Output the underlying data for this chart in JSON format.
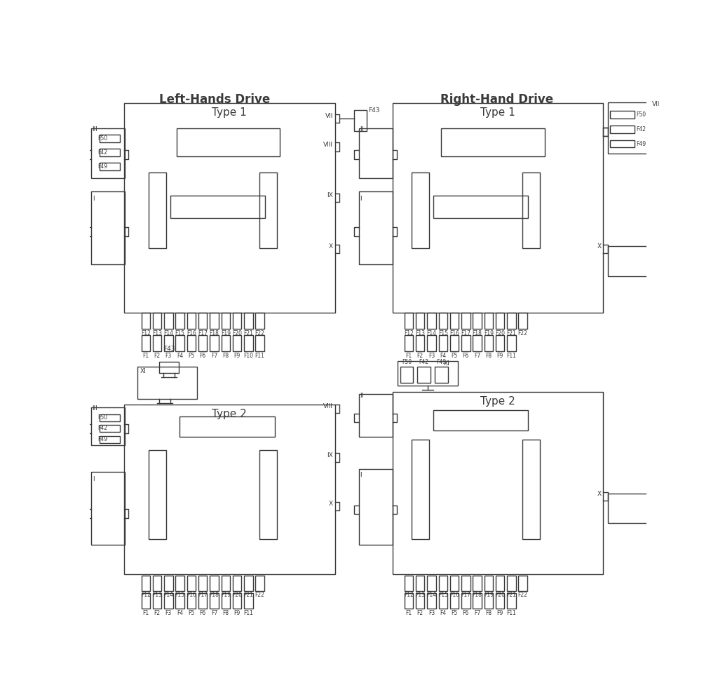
{
  "bg": "#ffffff",
  "lc": "#3a3a3a",
  "lw": 1.0,
  "title_lhd": "Left-Hands Drive",
  "title_rhd": "Right-Hand Drive",
  "fuse_row1_lhd_t1": [
    "F12",
    "F13",
    "F14",
    "F15",
    "F16",
    "F17",
    "F18",
    "F19",
    "F20",
    "F21",
    "F22"
  ],
  "fuse_row2_lhd_t1": [
    "F1",
    "F2",
    "F3",
    "F4",
    "F5",
    "F6",
    "F7",
    "F8",
    "F9",
    "F10",
    "F11"
  ],
  "fuse_row1_rhd_t1": [
    "F12",
    "F13",
    "F14",
    "F15",
    "F16",
    "F17",
    "F18",
    "F19",
    "F20",
    "F21",
    "F22"
  ],
  "fuse_row2_rhd_t1": [
    "F1",
    "F2",
    "F3",
    "F4",
    "F5",
    "F6",
    "F7",
    "F8",
    "F9",
    "F11"
  ],
  "fuse_row1_lhd_t2": [
    "F12",
    "F13",
    "F14",
    "F15",
    "F16",
    "F17",
    "F18",
    "F19",
    "F20",
    "F21",
    "F22"
  ],
  "fuse_row2_lhd_t2": [
    "F1",
    "F2",
    "F3",
    "F4",
    "F5",
    "F6",
    "F7",
    "F8",
    "F9",
    "F11"
  ],
  "fuse_row1_rhd_t2": [
    "F12",
    "F13",
    "F14",
    "F15",
    "F16",
    "F17",
    "F18",
    "F19",
    "F20",
    "F21",
    "F22"
  ],
  "fuse_row2_rhd_t2": [
    "F1",
    "F2",
    "F3",
    "F4",
    "F5",
    "F6",
    "F7",
    "F8",
    "F9",
    "F11"
  ]
}
